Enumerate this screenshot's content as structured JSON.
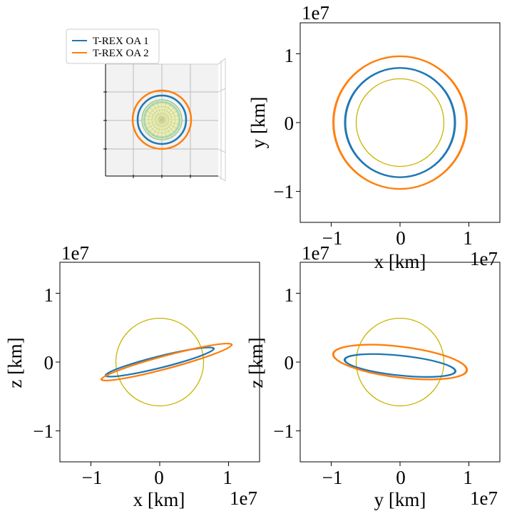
{
  "legend": {
    "entries": [
      {
        "label": "T-REX OA 1",
        "color": "#1f77b4"
      },
      {
        "label": "T-REX OA 2",
        "color": "#ff7f0e"
      }
    ]
  },
  "chart_data": [
    {
      "type": "line",
      "view": "3d",
      "series": [
        {
          "name": "T-REX OA 1",
          "color": "#1f77b4"
        },
        {
          "name": "T-REX OA 2",
          "color": "#ff7f0e"
        }
      ],
      "planet": {
        "color": "#d4d44a"
      }
    },
    {
      "type": "line",
      "xlabel": "x [km]",
      "ylabel": "y [km]",
      "offset_label_x": "1e7",
      "offset_label_y": "1e7",
      "xlim": [
        -1.45,
        1.45
      ],
      "ylim": [
        -1.45,
        1.45
      ],
      "xticks": [
        "−1",
        "0",
        "1"
      ],
      "yticks": [
        "−1",
        "0",
        "1"
      ],
      "tick_values": [
        -1,
        0,
        1
      ],
      "planet": {
        "radius": 0.637,
        "color": "#c8b400"
      },
      "orbits": [
        {
          "name": "T-REX OA 1",
          "color": "#1f77b4",
          "center": [
            0,
            0
          ],
          "a": 0.79,
          "b": 0.79,
          "angle_deg": 0
        },
        {
          "name": "T-REX OA 2",
          "color": "#ff7f0e",
          "center": [
            0,
            0
          ],
          "a": 0.96,
          "b": 0.96,
          "angle_deg": 0
        }
      ]
    },
    {
      "type": "line",
      "xlabel": "x [km]",
      "ylabel": "z [km]",
      "offset_label_x": "1e7",
      "offset_label_y": "1e7",
      "xlim": [
        -1.45,
        1.45
      ],
      "ylim": [
        -1.45,
        1.45
      ],
      "xticks": [
        "−1",
        "0",
        "1"
      ],
      "yticks": [
        "−1",
        "0",
        "1"
      ],
      "tick_values": [
        -1,
        0,
        1
      ],
      "planet": {
        "radius": 0.637,
        "color": "#c8b400"
      },
      "orbits": [
        {
          "name": "T-REX OA 1",
          "color": "#1f77b4",
          "center": [
            0,
            0
          ],
          "a": 0.8,
          "b": 0.08,
          "angle_deg": 14
        },
        {
          "name": "T-REX OA 2",
          "color": "#ff7f0e",
          "center": [
            0.1,
            0
          ],
          "a": 0.97,
          "b": 0.09,
          "angle_deg": 15
        }
      ]
    },
    {
      "type": "line",
      "xlabel": "y [km]",
      "ylabel": "z [km]",
      "offset_label_x": "1e7",
      "offset_label_y": "1e7",
      "xlim": [
        -1.45,
        1.45
      ],
      "ylim": [
        -1.45,
        1.45
      ],
      "xticks": [
        "−1",
        "0",
        "1"
      ],
      "yticks": [
        "−1",
        "0",
        "1"
      ],
      "tick_values": [
        -1,
        0,
        1
      ],
      "planet": {
        "radius": 0.637,
        "color": "#c8b400"
      },
      "orbits": [
        {
          "name": "T-REX OA 1",
          "color": "#1f77b4",
          "center": [
            0,
            -0.05
          ],
          "a": 0.8,
          "b": 0.14,
          "angle_deg": -6
        },
        {
          "name": "T-REX OA 2",
          "color": "#ff7f0e",
          "center": [
            0,
            0
          ],
          "a": 0.97,
          "b": 0.22,
          "angle_deg": -7
        }
      ]
    }
  ]
}
